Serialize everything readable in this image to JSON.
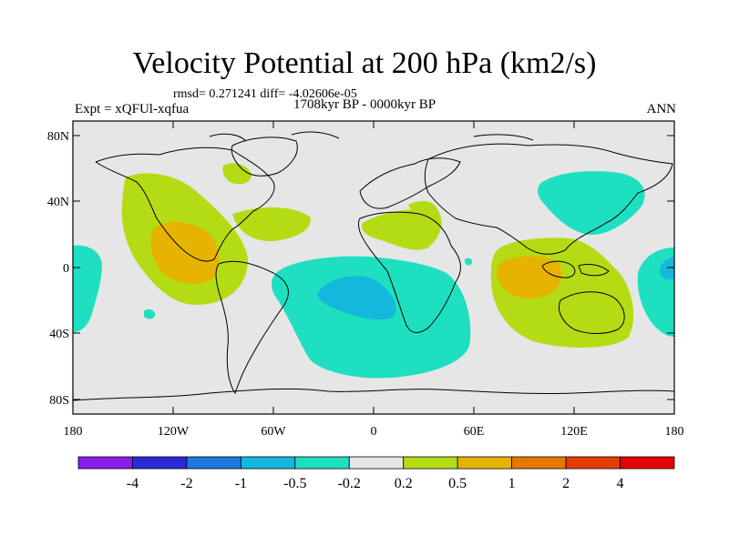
{
  "header": {
    "title": "Velocity Potential at 200 hPa (km2/s)",
    "stats": "rmsd= 0.271241 diff= -4.02606e-05",
    "period": "1708kyr BP - 0000kyr BP",
    "experiment": "Expt = xQFUl-xqfua",
    "season": "ANN"
  },
  "map": {
    "projection": "cylindrical-equidistant",
    "background_color": "#e6e6e6",
    "lat_ticks": [
      "80N",
      "40N",
      "0",
      "40S",
      "80S"
    ],
    "lon_ticks": [
      "180",
      "120W",
      "60W",
      "0",
      "60E",
      "120E",
      "180"
    ]
  },
  "colorbar": {
    "labels": [
      "-4",
      "-2",
      "-1",
      "-0.5",
      "-0.2",
      "0.2",
      "0.5",
      "1",
      "2",
      "4"
    ],
    "colors": [
      "#8a1ee8",
      "#2a2ad8",
      "#1e78e0",
      "#14b8dc",
      "#1ee0c0",
      "#e6e6e6",
      "#b4dc14",
      "#e6b400",
      "#e67800",
      "#e63c00",
      "#e60000"
    ]
  }
}
